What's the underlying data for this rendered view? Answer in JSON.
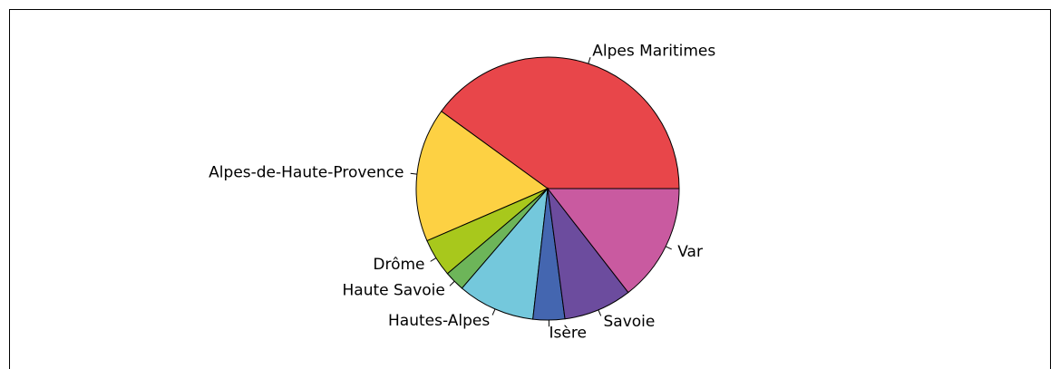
{
  "chart_data": {
    "type": "pie",
    "categories": [
      "Alpes Maritimes",
      "Alpes-de-Haute-Provence",
      "Drôme",
      "Haute Savoie",
      "Hautes-Alpes",
      "Isère",
      "Savoie",
      "Var"
    ],
    "values": [
      40,
      16.5,
      4.7,
      2.5,
      9.5,
      3.9,
      8.4,
      14.5
    ],
    "colors": [
      "#e8464a",
      "#fdd143",
      "#a8c81c",
      "#6db559",
      "#74c8dc",
      "#4466b0",
      "#6c4c9e",
      "#c95aa0"
    ]
  }
}
